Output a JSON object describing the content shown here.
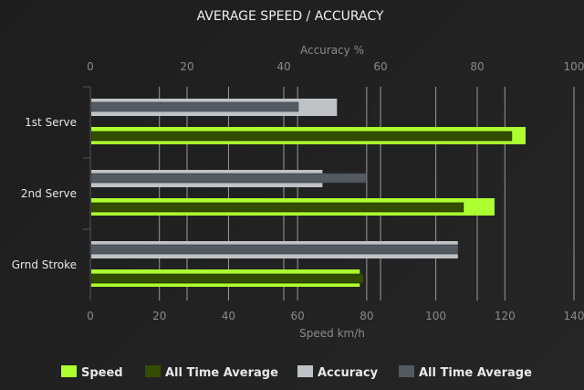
{
  "chart_data": {
    "type": "bar",
    "orientation": "horizontal",
    "title": "AVERAGE SPEED / ACCURACY",
    "categories": [
      "1st Serve",
      "2nd Serve",
      "Grnd Stroke"
    ],
    "speed_axis": {
      "label": "Speed km/h",
      "range": [
        0,
        140
      ],
      "ticks": [
        0,
        20,
        40,
        60,
        80,
        100,
        120,
        140
      ],
      "position": "bottom"
    },
    "accuracy_axis": {
      "label": "Accuracy %",
      "range": [
        0,
        100
      ],
      "ticks": [
        0,
        20,
        40,
        60,
        80,
        100
      ],
      "position": "top"
    },
    "series": [
      {
        "name": "Speed",
        "axis": "speed",
        "color": "#adff2f",
        "values": [
          126,
          117,
          78
        ]
      },
      {
        "name": "All Time Average",
        "axis": "speed",
        "color": "#334d00",
        "values": [
          122,
          108,
          79
        ]
      },
      {
        "name": "Accuracy",
        "axis": "accuracy",
        "color": "#bfc3c6",
        "values": [
          51,
          48,
          76
        ]
      },
      {
        "name": "All Time Average",
        "axis": "accuracy",
        "color": "#545a61",
        "values": [
          43,
          57,
          76
        ]
      }
    ],
    "grid": true,
    "legend": "bottom"
  }
}
